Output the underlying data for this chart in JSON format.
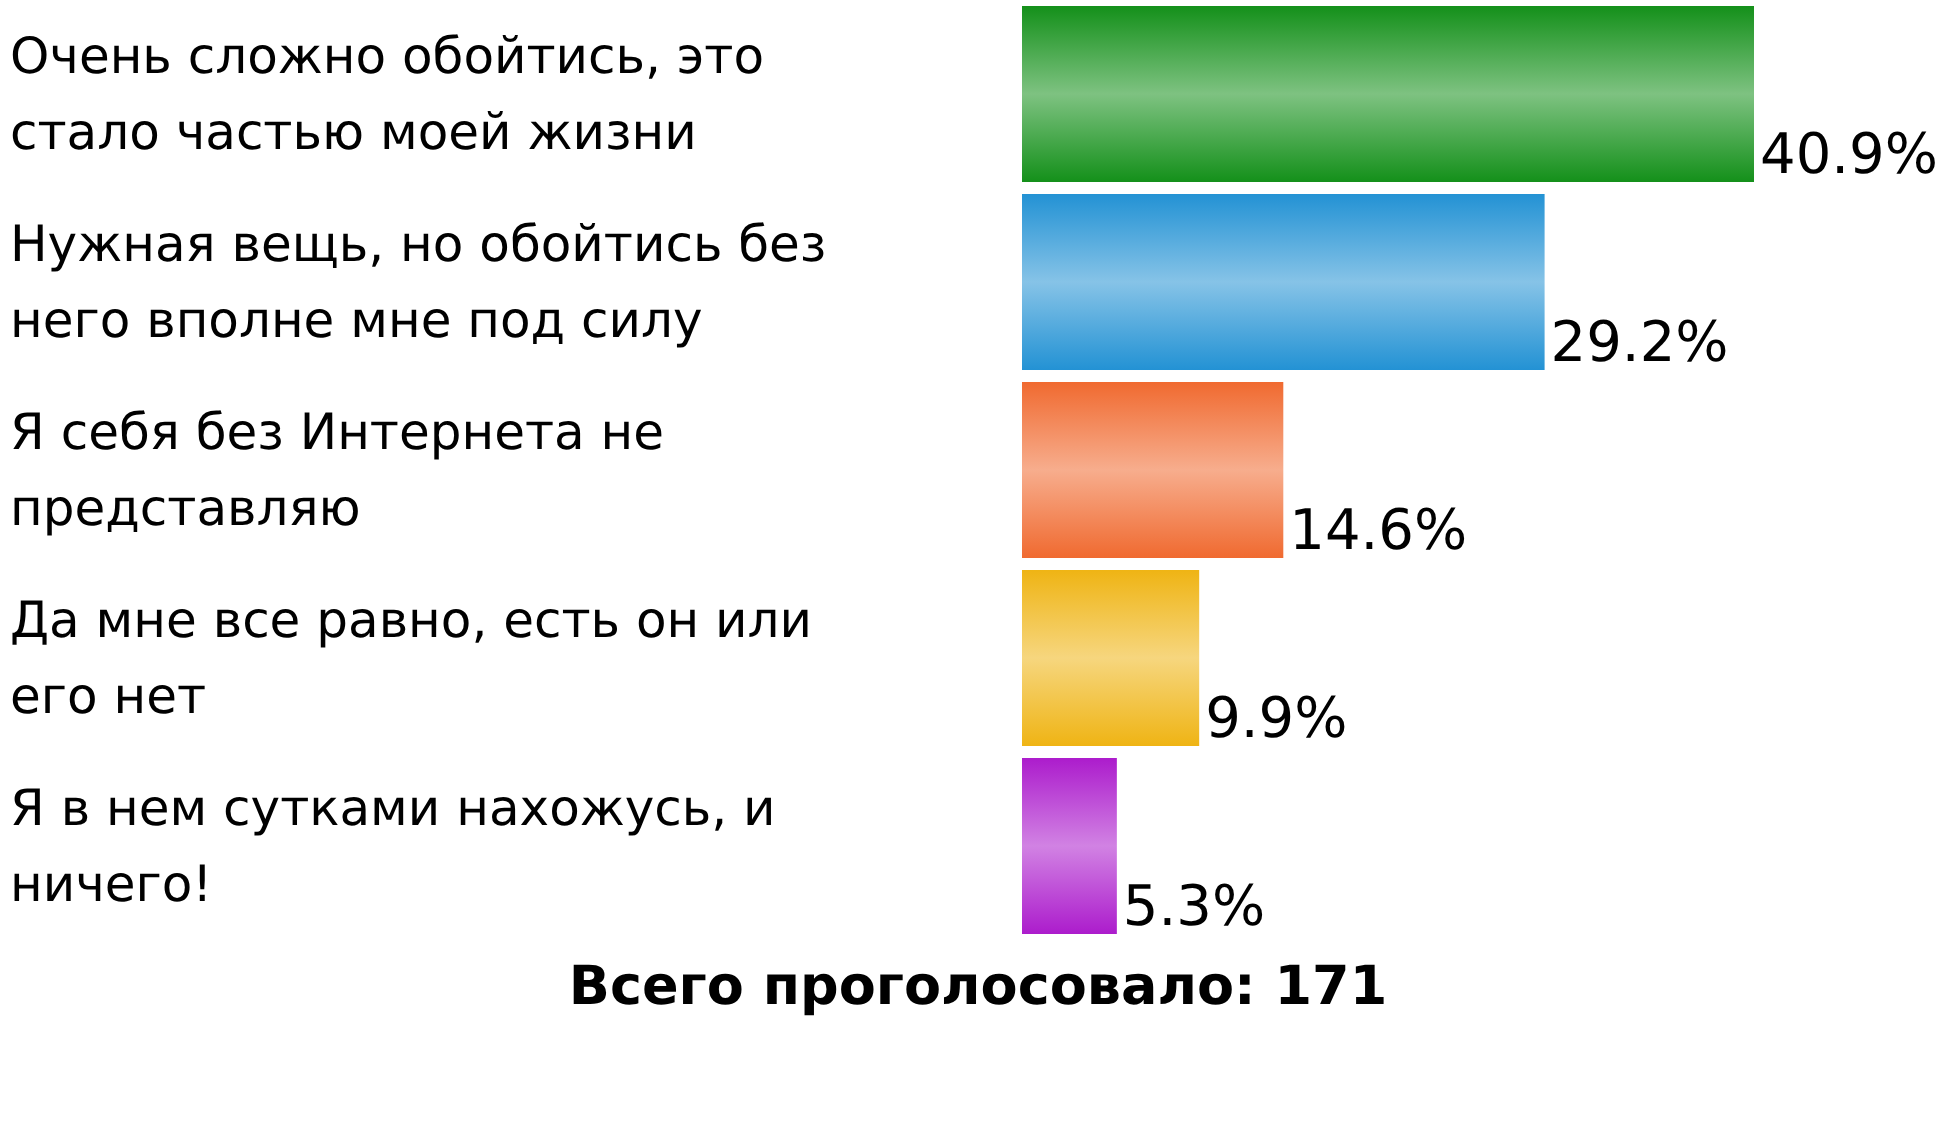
{
  "chart_data": {
    "type": "bar",
    "orientation": "horizontal",
    "categories": [
      "Очень сложно обойтись, это стало частью моей жизни",
      "Нужная вещь, но обойтись без него вполне мне под силу",
      "Я себя без Интернета не представляю",
      "Да мне все равно, есть он или его нет",
      "Я в нем сутками нахожусь, и ничего!"
    ],
    "values": [
      40.9,
      29.2,
      14.6,
      9.9,
      5.3
    ],
    "value_labels": [
      "40.9%",
      "29.2%",
      "14.6%",
      "9.9%",
      "5.3%"
    ],
    "colors": [
      "#14901a",
      "#2392d4",
      "#f06a30",
      "#efb414",
      "#ac1ccc"
    ],
    "annotations": [
      "Всего проголосовало: 171"
    ]
  }
}
